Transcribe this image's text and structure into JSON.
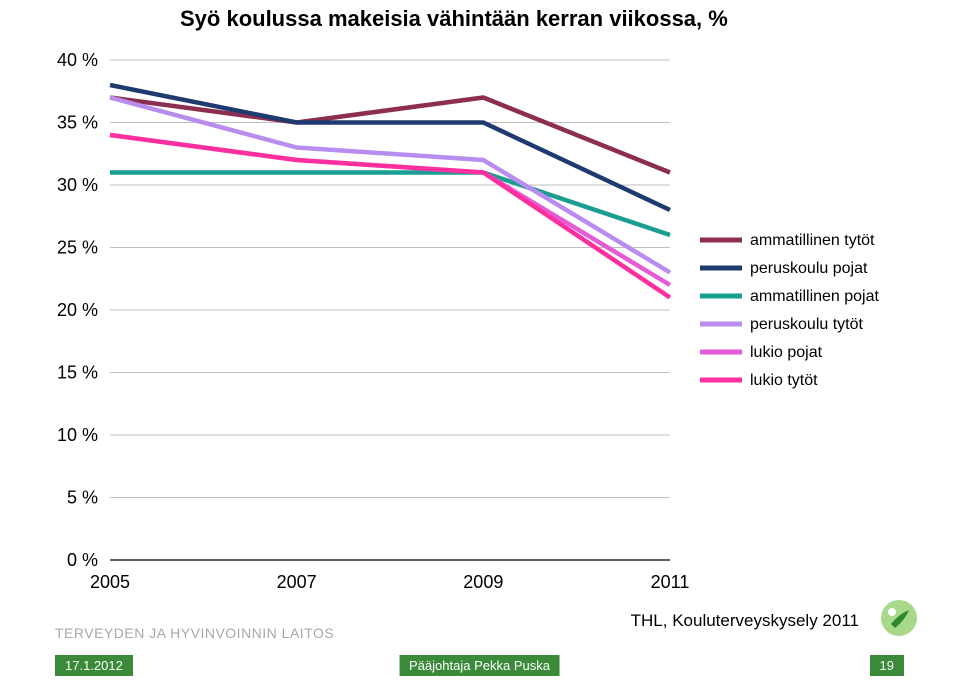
{
  "title": "Syö koulussa makeisia vähintään kerran viikossa, %",
  "chart": {
    "type": "line",
    "x_values": [
      "2005",
      "2007",
      "2009",
      "2011"
    ],
    "ylim": [
      0,
      40
    ],
    "ytick_step": 5,
    "ytick_labels": [
      "0 %",
      "5 %",
      "10 %",
      "15 %",
      "20 %",
      "25 %",
      "30 %",
      "35 %",
      "40 %"
    ],
    "grid_color": "#bfbfbf",
    "axis_color": "#000000",
    "background_color": "#ffffff",
    "line_width": 4.5,
    "series": [
      {
        "name": "ammatillinen tytöt",
        "color": "#8b2e4f",
        "values": [
          37,
          35,
          37,
          31
        ]
      },
      {
        "name": "peruskoulu pojat",
        "color": "#1f3a6e",
        "values": [
          38,
          35,
          35,
          28
        ]
      },
      {
        "name": "ammatillinen pojat",
        "color": "#1a9e91",
        "values": [
          31,
          31,
          31,
          26
        ]
      },
      {
        "name": "peruskoulu tytöt",
        "color": "#b98cf0",
        "values": [
          37,
          33,
          32,
          23
        ]
      },
      {
        "name": "lukio pojat",
        "color": "#e55bd6",
        "values": [
          34,
          32,
          31,
          22
        ]
      },
      {
        "name": "lukio tytöt",
        "color": "#ff2fa0",
        "values": [
          34,
          32,
          31,
          21
        ]
      }
    ]
  },
  "legend_font_size": 16,
  "organization": "TERVEYDEN JA HYVINVOINNIN LAITOS",
  "source": "THL, Kouluterveyskysely 2011",
  "footer_date": "17.1.2012",
  "footer_author": "Pääjohtaja Pekka Puska",
  "footer_page": "19"
}
